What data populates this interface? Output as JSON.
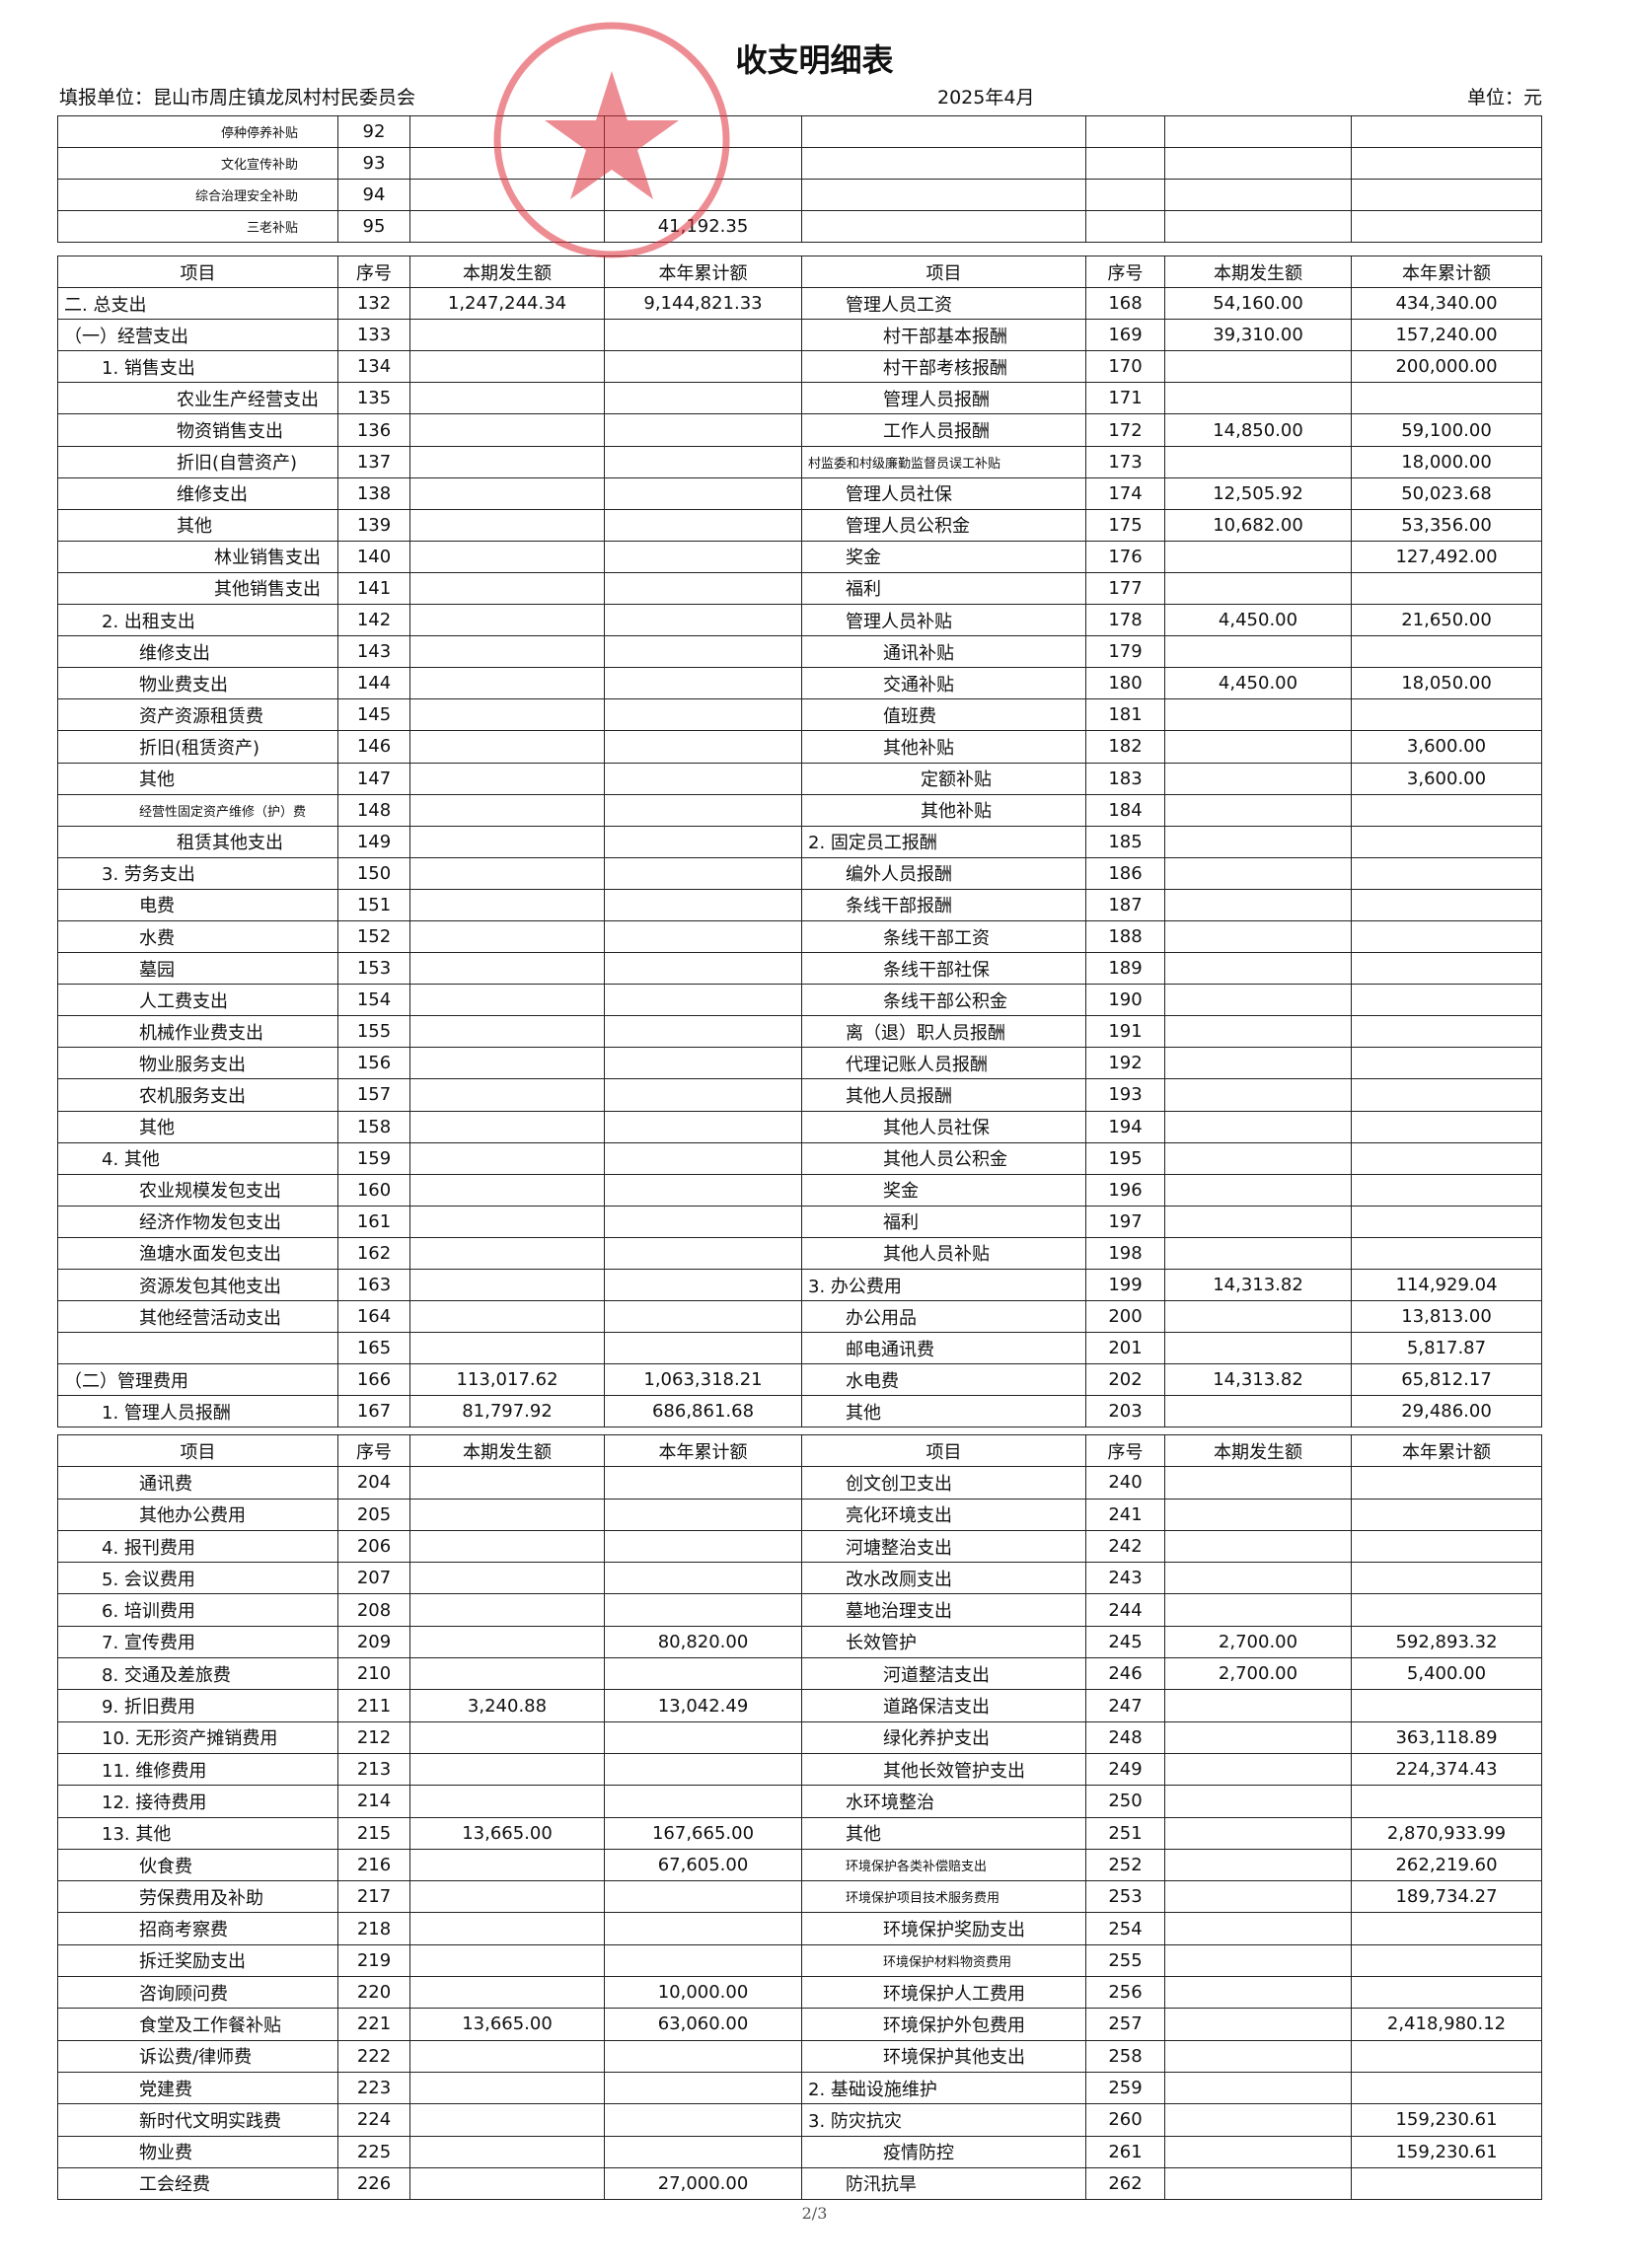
{
  "header": {
    "title": "收支明细表",
    "unit": "填报单位：昆山市周庄镇龙凤村村民委员会",
    "period": "2025年4月",
    "currency": "单位：元"
  },
  "top_table": {
    "rows": [
      [
        "停种停养补贴",
        92,
        null,
        null,
        null,
        null,
        null,
        null
      ],
      [
        "文化宣传补助",
        93,
        null,
        null,
        null,
        null,
        null,
        null
      ],
      [
        "综合治理安全补助",
        94,
        null,
        null,
        null,
        null,
        null,
        null
      ],
      [
        "三老补贴",
        95,
        null,
        "41,192.35",
        null,
        null,
        null,
        null
      ]
    ]
  },
  "table1": {
    "columns": [
      "项目",
      "序号",
      "本期发生额",
      "本年累计额",
      "项目",
      "序号",
      "本期发生额",
      "本年累计额"
    ],
    "rows": [
      [
        "二. 总支出",
        132,
        "1,247,244.34",
        "9,144,821.33",
        "管理人员工资",
        168,
        "54,160.00",
        "434,340.00"
      ],
      [
        "（一）经营支出",
        133,
        null,
        null,
        "村干部基本报酬",
        169,
        "39,310.00",
        "157,240.00"
      ],
      [
        "1. 销售支出",
        134,
        null,
        null,
        "村干部考核报酬",
        170,
        null,
        "200,000.00"
      ],
      [
        "农业生产经营支出",
        135,
        null,
        null,
        "管理人员报酬",
        171,
        null,
        null
      ],
      [
        "物资销售支出",
        136,
        null,
        null,
        "工作人员报酬",
        172,
        "14,850.00",
        "59,100.00"
      ],
      [
        "折旧(自营资产)",
        137,
        null,
        null,
        "村监委和村级廉勤监督员误工补贴",
        173,
        null,
        "18,000.00"
      ],
      [
        "维修支出",
        138,
        null,
        null,
        "管理人员社保",
        174,
        "12,505.92",
        "50,023.68"
      ],
      [
        "其他",
        139,
        null,
        null,
        "管理人员公积金",
        175,
        "10,682.00",
        "53,356.00"
      ],
      [
        "林业销售支出",
        140,
        null,
        null,
        "奖金",
        176,
        null,
        "127,492.00"
      ],
      [
        "其他销售支出",
        141,
        null,
        null,
        "福利",
        177,
        null,
        null
      ],
      [
        "2. 出租支出",
        142,
        null,
        null,
        "管理人员补贴",
        178,
        "4,450.00",
        "21,650.00"
      ],
      [
        "维修支出",
        143,
        null,
        null,
        "通讯补贴",
        179,
        null,
        null
      ],
      [
        "物业费支出",
        144,
        null,
        null,
        "交通补贴",
        180,
        "4,450.00",
        "18,050.00"
      ],
      [
        "资产资源租赁费",
        145,
        null,
        null,
        "值班费",
        181,
        null,
        null
      ],
      [
        "折旧(租赁资产)",
        146,
        null,
        null,
        "其他补贴",
        182,
        null,
        "3,600.00"
      ],
      [
        "其他",
        147,
        null,
        null,
        "定额补贴",
        183,
        null,
        "3,600.00"
      ],
      [
        "经营性固定资产维修（护）费",
        148,
        null,
        null,
        "其他补贴",
        184,
        null,
        null
      ],
      [
        "租赁其他支出",
        149,
        null,
        null,
        "2. 固定员工报酬",
        185,
        null,
        null
      ],
      [
        "3. 劳务支出",
        150,
        null,
        null,
        "编外人员报酬",
        186,
        null,
        null
      ],
      [
        "电费",
        151,
        null,
        null,
        "条线干部报酬",
        187,
        null,
        null
      ],
      [
        "水费",
        152,
        null,
        null,
        "条线干部工资",
        188,
        null,
        null
      ],
      [
        "墓园",
        153,
        null,
        null,
        "条线干部社保",
        189,
        null,
        null
      ],
      [
        "人工费支出",
        154,
        null,
        null,
        "条线干部公积金",
        190,
        null,
        null
      ],
      [
        "机械作业费支出",
        155,
        null,
        null,
        "离（退）职人员报酬",
        191,
        null,
        null
      ],
      [
        "物业服务支出",
        156,
        null,
        null,
        "代理记账人员报酬",
        192,
        null,
        null
      ],
      [
        "农机服务支出",
        157,
        null,
        null,
        "其他人员报酬",
        193,
        null,
        null
      ],
      [
        "其他",
        158,
        null,
        null,
        "其他人员社保",
        194,
        null,
        null
      ],
      [
        "4. 其他",
        159,
        null,
        null,
        "其他人员公积金",
        195,
        null,
        null
      ],
      [
        "农业规模发包支出",
        160,
        null,
        null,
        "奖金",
        196,
        null,
        null
      ],
      [
        "经济作物发包支出",
        161,
        null,
        null,
        "福利",
        197,
        null,
        null
      ],
      [
        "渔塘水面发包支出",
        162,
        null,
        null,
        "其他人员补贴",
        198,
        null,
        null
      ],
      [
        "资源发包其他支出",
        163,
        null,
        null,
        "3. 办公费用",
        199,
        "14,313.82",
        "114,929.04"
      ],
      [
        "其他经营活动支出",
        164,
        null,
        null,
        "办公用品",
        200,
        null,
        "13,813.00"
      ],
      [
        null,
        165,
        null,
        null,
        "邮电通讯费",
        201,
        null,
        "5,817.87"
      ],
      [
        "（二）管理费用",
        166,
        "113,017.62",
        "1,063,318.21",
        "水电费",
        202,
        "14,313.82",
        "65,812.17"
      ],
      [
        "1. 管理人员报酬",
        167,
        "81,797.92",
        "686,861.68",
        "其他",
        203,
        null,
        "29,486.00"
      ]
    ]
  },
  "table2": {
    "columns": [
      "项目",
      "序号",
      "本期发生额",
      "本年累计额",
      "项目",
      "序号",
      "本期发生额",
      "本年累计额"
    ],
    "rows": [
      [
        "通讯费",
        204,
        null,
        null,
        "创文创卫支出",
        240,
        null,
        null
      ],
      [
        "其他办公费用",
        205,
        null,
        null,
        "亮化环境支出",
        241,
        null,
        null
      ],
      [
        "4. 报刊费用",
        206,
        null,
        null,
        "河塘整治支出",
        242,
        null,
        null
      ],
      [
        "5. 会议费用",
        207,
        null,
        null,
        "改水改厕支出",
        243,
        null,
        null
      ],
      [
        "6. 培训费用",
        208,
        null,
        null,
        "墓地治理支出",
        244,
        null,
        null
      ],
      [
        "7. 宣传费用",
        209,
        null,
        "80,820.00",
        "长效管护",
        245,
        "2,700.00",
        "592,893.32"
      ],
      [
        "8. 交通及差旅费",
        210,
        null,
        null,
        "河道整洁支出",
        246,
        "2,700.00",
        "5,400.00"
      ],
      [
        "9. 折旧费用",
        211,
        "3,240.88",
        "13,042.49",
        "道路保洁支出",
        247,
        null,
        null
      ],
      [
        "10. 无形资产摊销费用",
        212,
        null,
        null,
        "绿化养护支出",
        248,
        null,
        "363,118.89"
      ],
      [
        "11. 维修费用",
        213,
        null,
        null,
        "其他长效管护支出",
        249,
        null,
        "224,374.43"
      ],
      [
        "12. 接待费用",
        214,
        null,
        null,
        "水环境整治",
        250,
        null,
        null
      ],
      [
        "13. 其他",
        215,
        "13,665.00",
        "167,665.00",
        "其他",
        251,
        null,
        "2,870,933.99"
      ],
      [
        "伙食费",
        216,
        null,
        "67,605.00",
        "环境保护各类补偿赔支出",
        252,
        null,
        "262,219.60"
      ],
      [
        "劳保费用及补助",
        217,
        null,
        null,
        "环境保护项目技术服务费用",
        253,
        null,
        "189,734.27"
      ],
      [
        "招商考察费",
        218,
        null,
        null,
        "环境保护奖励支出",
        254,
        null,
        null
      ],
      [
        "拆迁奖励支出",
        219,
        null,
        null,
        "环境保护材料物资费用",
        255,
        null,
        null
      ],
      [
        "咨询顾问费",
        220,
        null,
        "10,000.00",
        "环境保护人工费用",
        256,
        null,
        null
      ],
      [
        "食堂及工作餐补贴",
        221,
        "13,665.00",
        "63,060.00",
        "环境保护外包费用",
        257,
        null,
        "2,418,980.12"
      ],
      [
        "诉讼费/律师费",
        222,
        null,
        null,
        "环境保护其他支出",
        258,
        null,
        null
      ],
      [
        "党建费",
        223,
        null,
        null,
        "2. 基础设施维护",
        259,
        null,
        null
      ],
      [
        "新时代文明实践费",
        224,
        null,
        null,
        "3. 防灾抗灾",
        260,
        null,
        "159,230.61"
      ],
      [
        "物业费",
        225,
        null,
        null,
        "疫情防控",
        261,
        null,
        "159,230.61"
      ],
      [
        "工会经费",
        226,
        null,
        "27,000.00",
        "防汛抗旱",
        262,
        null,
        null
      ]
    ]
  },
  "footer": {
    "page": "2/3"
  }
}
